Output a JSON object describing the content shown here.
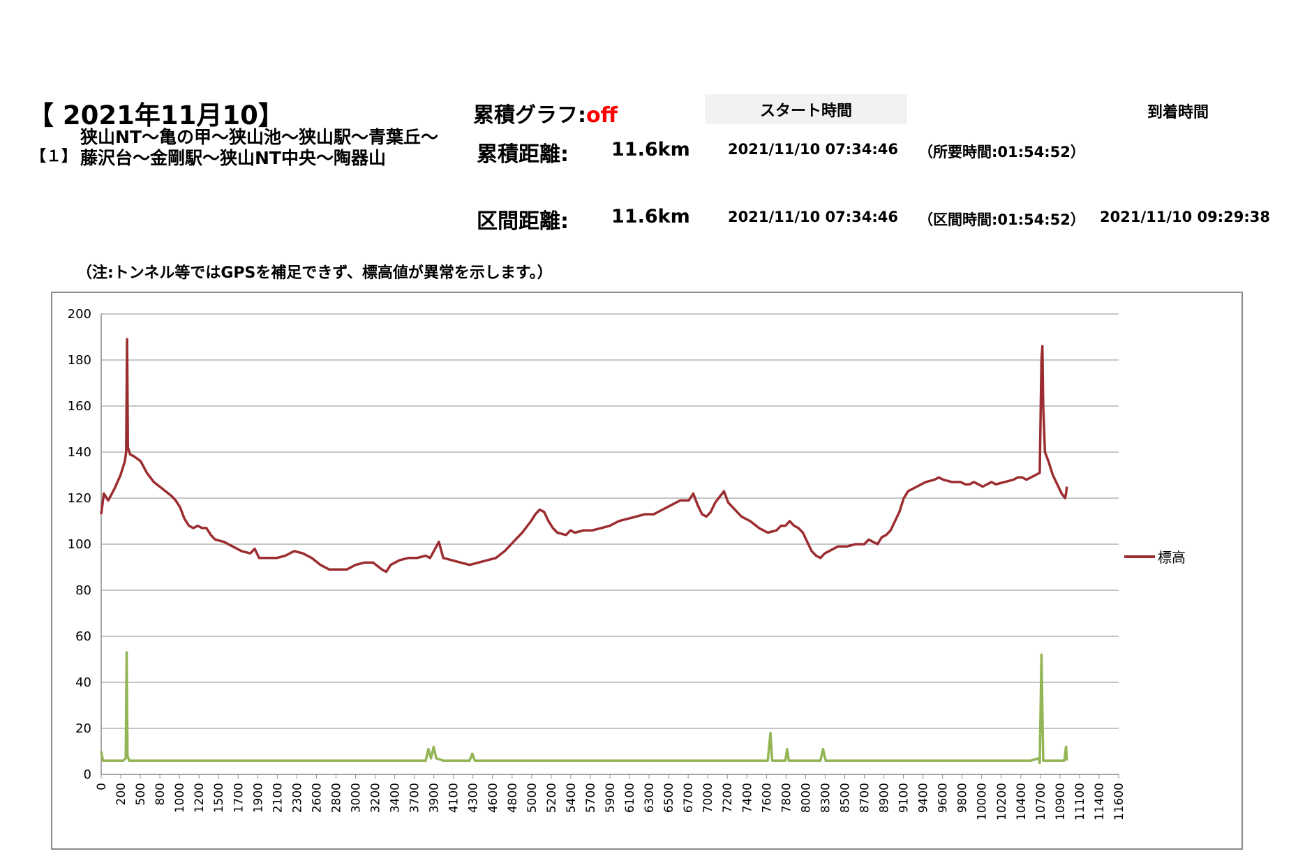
{
  "header": {
    "date_title": "【 2021年11月10】",
    "route_number": "【１】",
    "route_line1": "狭山NT～亀の甲～狭山池～狭山駅～青葉丘～",
    "route_line2": "藤沢台～金剛駅～狭山NT中央～陶器山",
    "cumulative_graph_label": "累積グラフ:",
    "cumulative_graph_value": "off",
    "cumulative_distance_label": "累積距離:",
    "cumulative_distance_value": "11.6km",
    "section_distance_label": "区間距離:",
    "section_distance_value": "11.6km",
    "start_time_label": "スタート時間",
    "arrival_time_label": "到着時間",
    "start_time_1": "2021/11/10 07:34:46",
    "required_time": "（所要時間:01:54:52）",
    "start_time_2": "2021/11/10 07:34:46",
    "section_time": "（区間時間:01:54:52）",
    "arrival_time": "2021/11/10 09:29:38",
    "note": "（注:トンネル等ではGPSを補足できず、標高値が異常を示します。）"
  },
  "colors": {
    "elevation": "#9b2d30",
    "secondary": "#93b556",
    "grid": "#8c8c8c",
    "cumulative_off": "#ff0000",
    "start_box": "#f2f2f2"
  },
  "chart_data": {
    "type": "line",
    "title": "",
    "xlabel": "",
    "ylabel": "",
    "ylim": [
      0,
      200
    ],
    "yticks": [
      0,
      20,
      40,
      60,
      80,
      100,
      120,
      140,
      160,
      180,
      200
    ],
    "x_tick_labels": [
      "0",
      "200",
      "500",
      "800",
      "1000",
      "1200",
      "1500",
      "1700",
      "1900",
      "2100",
      "2300",
      "2600",
      "2800",
      "3000",
      "3200",
      "3400",
      "3700",
      "3900",
      "4100",
      "4300",
      "4600",
      "4800",
      "5000",
      "5200",
      "5400",
      "5700",
      "5900",
      "6100",
      "6300",
      "6500",
      "6700",
      "7000",
      "7200",
      "7400",
      "7600",
      "7800",
      "8000",
      "8300",
      "8500",
      "8700",
      "8900",
      "9100",
      "9400",
      "9600",
      "9800",
      "10000",
      "10200",
      "10400",
      "10700",
      "10900",
      "11100",
      "11400",
      "11600"
    ],
    "xlim": [
      0,
      11600
    ],
    "legend": {
      "position": "right",
      "entries": [
        "標高"
      ]
    },
    "grid": true,
    "series": [
      {
        "name": "標高",
        "color": "#9b2d30",
        "points": [
          [
            0,
            113
          ],
          [
            30,
            122
          ],
          [
            80,
            119
          ],
          [
            150,
            124
          ],
          [
            220,
            130
          ],
          [
            270,
            136
          ],
          [
            285,
            140
          ],
          [
            295,
            189
          ],
          [
            305,
            142
          ],
          [
            330,
            139
          ],
          [
            380,
            138
          ],
          [
            450,
            136
          ],
          [
            520,
            131
          ],
          [
            600,
            127
          ],
          [
            700,
            124
          ],
          [
            800,
            121
          ],
          [
            850,
            119
          ],
          [
            900,
            116
          ],
          [
            950,
            111
          ],
          [
            1000,
            108
          ],
          [
            1050,
            107
          ],
          [
            1100,
            108
          ],
          [
            1150,
            107
          ],
          [
            1200,
            107
          ],
          [
            1250,
            104
          ],
          [
            1300,
            102
          ],
          [
            1400,
            101
          ],
          [
            1500,
            99
          ],
          [
            1600,
            97
          ],
          [
            1700,
            96
          ],
          [
            1750,
            98
          ],
          [
            1800,
            94
          ],
          [
            1900,
            94
          ],
          [
            2000,
            94
          ],
          [
            2100,
            95
          ],
          [
            2200,
            97
          ],
          [
            2300,
            96
          ],
          [
            2400,
            94
          ],
          [
            2500,
            91
          ],
          [
            2600,
            89
          ],
          [
            2700,
            89
          ],
          [
            2800,
            89
          ],
          [
            2900,
            91
          ],
          [
            3000,
            92
          ],
          [
            3100,
            92
          ],
          [
            3200,
            89
          ],
          [
            3250,
            88
          ],
          [
            3300,
            91
          ],
          [
            3400,
            93
          ],
          [
            3500,
            94
          ],
          [
            3600,
            94
          ],
          [
            3700,
            95
          ],
          [
            3750,
            94
          ],
          [
            3850,
            101
          ],
          [
            3900,
            94
          ],
          [
            4000,
            93
          ],
          [
            4100,
            92
          ],
          [
            4200,
            91
          ],
          [
            4300,
            92
          ],
          [
            4400,
            93
          ],
          [
            4500,
            94
          ],
          [
            4600,
            97
          ],
          [
            4700,
            101
          ],
          [
            4800,
            105
          ],
          [
            4900,
            110
          ],
          [
            4950,
            113
          ],
          [
            5000,
            115
          ],
          [
            5050,
            114
          ],
          [
            5100,
            110
          ],
          [
            5150,
            107
          ],
          [
            5200,
            105
          ],
          [
            5300,
            104
          ],
          [
            5350,
            106
          ],
          [
            5400,
            105
          ],
          [
            5500,
            106
          ],
          [
            5600,
            106
          ],
          [
            5700,
            107
          ],
          [
            5800,
            108
          ],
          [
            5900,
            110
          ],
          [
            6000,
            111
          ],
          [
            6100,
            112
          ],
          [
            6200,
            113
          ],
          [
            6300,
            113
          ],
          [
            6400,
            115
          ],
          [
            6500,
            117
          ],
          [
            6600,
            119
          ],
          [
            6700,
            119
          ],
          [
            6750,
            122
          ],
          [
            6800,
            117
          ],
          [
            6850,
            113
          ],
          [
            6900,
            112
          ],
          [
            6950,
            114
          ],
          [
            7000,
            118
          ],
          [
            7100,
            123
          ],
          [
            7150,
            118
          ],
          [
            7200,
            116
          ],
          [
            7300,
            112
          ],
          [
            7400,
            110
          ],
          [
            7500,
            107
          ],
          [
            7600,
            105
          ],
          [
            7700,
            106
          ],
          [
            7750,
            108
          ],
          [
            7800,
            108
          ],
          [
            7850,
            110
          ],
          [
            7900,
            108
          ],
          [
            7950,
            107
          ],
          [
            8000,
            105
          ],
          [
            8050,
            101
          ],
          [
            8100,
            97
          ],
          [
            8150,
            95
          ],
          [
            8200,
            94
          ],
          [
            8250,
            96
          ],
          [
            8300,
            97
          ],
          [
            8350,
            98
          ],
          [
            8400,
            99
          ],
          [
            8500,
            99
          ],
          [
            8600,
            100
          ],
          [
            8700,
            100
          ],
          [
            8750,
            102
          ],
          [
            8800,
            101
          ],
          [
            8850,
            100
          ],
          [
            8900,
            103
          ],
          [
            8950,
            104
          ],
          [
            9000,
            106
          ],
          [
            9050,
            110
          ],
          [
            9100,
            114
          ],
          [
            9150,
            120
          ],
          [
            9200,
            123
          ],
          [
            9300,
            125
          ],
          [
            9400,
            127
          ],
          [
            9500,
            128
          ],
          [
            9550,
            129
          ],
          [
            9600,
            128
          ],
          [
            9700,
            127
          ],
          [
            9800,
            127
          ],
          [
            9850,
            126
          ],
          [
            9900,
            126
          ],
          [
            9950,
            127
          ],
          [
            10000,
            126
          ],
          [
            10050,
            125
          ],
          [
            10100,
            126
          ],
          [
            10150,
            127
          ],
          [
            10200,
            126
          ],
          [
            10300,
            127
          ],
          [
            10400,
            128
          ],
          [
            10450,
            129
          ],
          [
            10500,
            129
          ],
          [
            10550,
            128
          ],
          [
            10600,
            129
          ],
          [
            10650,
            130
          ],
          [
            10700,
            131
          ],
          [
            10720,
            180
          ],
          [
            10730,
            186
          ],
          [
            10740,
            160
          ],
          [
            10760,
            140
          ],
          [
            10800,
            136
          ],
          [
            10850,
            130
          ],
          [
            10900,
            126
          ],
          [
            10950,
            122
          ],
          [
            10990,
            120
          ],
          [
            11000,
            122
          ],
          [
            11010,
            125
          ]
        ]
      },
      {
        "name": "",
        "color": "#93b556",
        "points": [
          [
            0,
            10
          ],
          [
            20,
            6
          ],
          [
            100,
            6
          ],
          [
            250,
            6
          ],
          [
            280,
            7
          ],
          [
            290,
            53
          ],
          [
            300,
            8
          ],
          [
            320,
            6
          ],
          [
            700,
            6
          ],
          [
            1000,
            6
          ],
          [
            2000,
            6
          ],
          [
            3000,
            6
          ],
          [
            3700,
            6
          ],
          [
            3730,
            11
          ],
          [
            3760,
            7
          ],
          [
            3790,
            12
          ],
          [
            3820,
            7
          ],
          [
            3900,
            6
          ],
          [
            4200,
            6
          ],
          [
            4230,
            9
          ],
          [
            4260,
            6
          ],
          [
            5000,
            6
          ],
          [
            6000,
            6
          ],
          [
            7000,
            6
          ],
          [
            7600,
            6
          ],
          [
            7630,
            18
          ],
          [
            7650,
            6
          ],
          [
            7800,
            6
          ],
          [
            7820,
            11
          ],
          [
            7840,
            6
          ],
          [
            8200,
            6
          ],
          [
            8230,
            11
          ],
          [
            8260,
            6
          ],
          [
            9000,
            6
          ],
          [
            10000,
            6
          ],
          [
            10600,
            6
          ],
          [
            10690,
            7
          ],
          [
            10700,
            5
          ],
          [
            10720,
            52
          ],
          [
            10740,
            6
          ],
          [
            10800,
            6
          ],
          [
            10980,
            6
          ],
          [
            11000,
            12
          ],
          [
            11010,
            6
          ]
        ]
      }
    ]
  }
}
